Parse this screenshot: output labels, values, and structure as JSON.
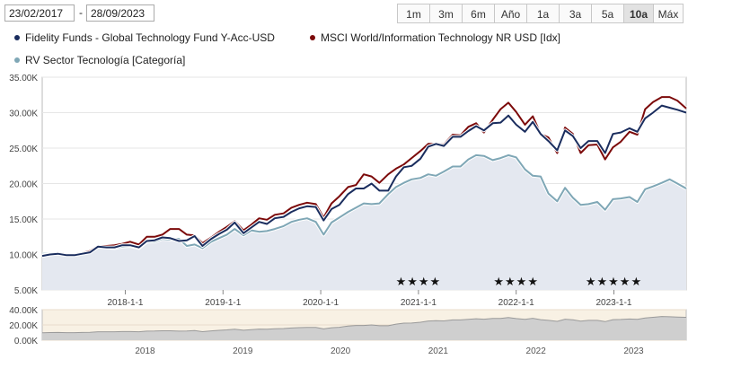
{
  "controls": {
    "start_date": "23/02/2017",
    "separator": "-",
    "end_date": "28/09/2023",
    "ranges": [
      "1m",
      "3m",
      "6m",
      "Año",
      "1a",
      "3a",
      "5a",
      "10a",
      "Máx"
    ],
    "active_range": "10a"
  },
  "chart_data": {
    "type": "line",
    "title": "",
    "xlabel": "",
    "ylabel": "",
    "ylim": [
      5000,
      35000
    ],
    "yticks": [
      5000,
      10000,
      15000,
      20000,
      25000,
      30000,
      35000
    ],
    "ytick_labels": [
      "5.00K",
      "10.00K",
      "15.00K",
      "20.00K",
      "25.00K",
      "30.00K",
      "35.00K"
    ],
    "xlim": [
      2017.15,
      2023.74
    ],
    "xticks": [
      2018,
      2019,
      2020,
      2021,
      2022,
      2023
    ],
    "xtick_labels": [
      "2018-1-1",
      "2019-1-1",
      "2020-1-1",
      "2021-1-1",
      "2022-1-1",
      "2023-1-1"
    ],
    "x": [
      2017.15,
      2017.23,
      2017.31,
      2017.4,
      2017.48,
      2017.56,
      2017.64,
      2017.72,
      2017.81,
      2017.89,
      2017.97,
      2018.05,
      2018.14,
      2018.22,
      2018.3,
      2018.38,
      2018.46,
      2018.55,
      2018.63,
      2018.71,
      2018.79,
      2018.88,
      2018.96,
      2019.04,
      2019.12,
      2019.21,
      2019.29,
      2019.37,
      2019.45,
      2019.53,
      2019.62,
      2019.7,
      2019.78,
      2019.86,
      2019.95,
      2020.03,
      2020.11,
      2020.19,
      2020.28,
      2020.36,
      2020.44,
      2020.52,
      2020.6,
      2020.69,
      2020.77,
      2020.85,
      2020.93,
      2021.02,
      2021.1,
      2021.18,
      2021.26,
      2021.35,
      2021.43,
      2021.51,
      2021.59,
      2021.67,
      2021.76,
      2021.84,
      2021.92,
      2022.0,
      2022.09,
      2022.17,
      2022.25,
      2022.33,
      2022.42,
      2022.5,
      2022.58,
      2022.66,
      2022.74,
      2022.83,
      2022.91,
      2022.99,
      2023.07,
      2023.16,
      2023.24,
      2023.32,
      2023.4,
      2023.49,
      2023.57,
      2023.65,
      2023.74
    ],
    "series": [
      {
        "name": "Fidelity Funds - Global Technology Fund Y-Acc-USD",
        "color": "#1a2d5e",
        "values": [
          9800,
          10000,
          10100,
          9900,
          9900,
          10100,
          10300,
          11100,
          11000,
          11000,
          11300,
          11300,
          11000,
          11900,
          12000,
          12400,
          12300,
          11900,
          12000,
          12600,
          11200,
          12200,
          12900,
          13500,
          14500,
          13000,
          13800,
          14600,
          14300,
          15100,
          15300,
          16000,
          16500,
          16800,
          16700,
          14800,
          16400,
          17000,
          18500,
          19300,
          19300,
          20000,
          19000,
          19000,
          21000,
          22300,
          22500,
          23500,
          25200,
          25600,
          25300,
          26600,
          26600,
          27400,
          28100,
          27500,
          28500,
          28600,
          29600,
          28300,
          27300,
          28700,
          27000,
          26000,
          24700,
          27500,
          26700,
          25000,
          26000,
          26000,
          24300,
          27000,
          27200,
          27800,
          27300,
          29200,
          30000,
          31000,
          30700,
          30400,
          30000
        ]
      },
      {
        "name": "MSCI World/Information Technology NR USD [Idx]",
        "color": "#7c0a0a",
        "values": [
          9900,
          10000,
          10200,
          10000,
          10000,
          10200,
          10500,
          11200,
          11200,
          11300,
          11500,
          11800,
          11400,
          12500,
          12500,
          12800,
          13600,
          13600,
          12800,
          12700,
          11600,
          12400,
          13200,
          13900,
          14700,
          13400,
          14200,
          15100,
          14900,
          15600,
          15800,
          16600,
          17000,
          17300,
          17100,
          15200,
          17200,
          18200,
          19500,
          19800,
          21300,
          21000,
          20100,
          21300,
          22100,
          22700,
          23600,
          24600,
          25600,
          25600,
          25500,
          26900,
          26800,
          28000,
          28500,
          27200,
          29000,
          30500,
          31400,
          30100,
          28300,
          29500,
          27000,
          26500,
          24300,
          27900,
          27000,
          24300,
          25400,
          25500,
          23400,
          25100,
          25900,
          27300,
          26900,
          30500,
          31500,
          32200,
          32200,
          31700,
          30600
        ]
      },
      {
        "name": "RV Sector Tecnología [Categoría]",
        "color": "#7fa7b6",
        "values": [
          10100,
          10100,
          10200,
          10000,
          10100,
          10100,
          10300,
          11200,
          11000,
          10900,
          11100,
          11200,
          10900,
          11800,
          11800,
          12200,
          12100,
          12200,
          11200,
          11400,
          10900,
          11800,
          12300,
          12800,
          13600,
          12700,
          13400,
          13200,
          13300,
          13600,
          14000,
          14600,
          14900,
          15100,
          14600,
          12800,
          14500,
          15200,
          16000,
          16600,
          17200,
          17100,
          17200,
          18500,
          19500,
          20100,
          20600,
          20800,
          21300,
          21100,
          21700,
          22400,
          22400,
          23400,
          24000,
          23900,
          23300,
          23600,
          24000,
          23700,
          22000,
          21100,
          21000,
          18600,
          17500,
          19400,
          18000,
          17000,
          17100,
          17400,
          16300,
          17800,
          17900,
          18100,
          17400,
          19200,
          19600,
          20100,
          20600,
          20000,
          19300
        ]
      }
    ],
    "fill_series": "RV Sector Tecnología [Categoría]",
    "fill_color": "#e4e8f0",
    "annotations": [
      "★★★★",
      "★★★★",
      "★★★★★"
    ],
    "annotation_x": [
      2021.0,
      2022.0,
      2023.0
    ],
    "navigator": {
      "ylim": [
        0,
        40000
      ],
      "yticks": [
        0,
        20000,
        40000
      ],
      "ytick_labels": [
        "0.00K",
        "20.00K",
        "40.00K"
      ],
      "xtick_labels": [
        "2018",
        "2019",
        "2020",
        "2021",
        "2022",
        "2023"
      ],
      "xticks": [
        2018,
        2019,
        2020,
        2021,
        2022,
        2023
      ]
    }
  }
}
